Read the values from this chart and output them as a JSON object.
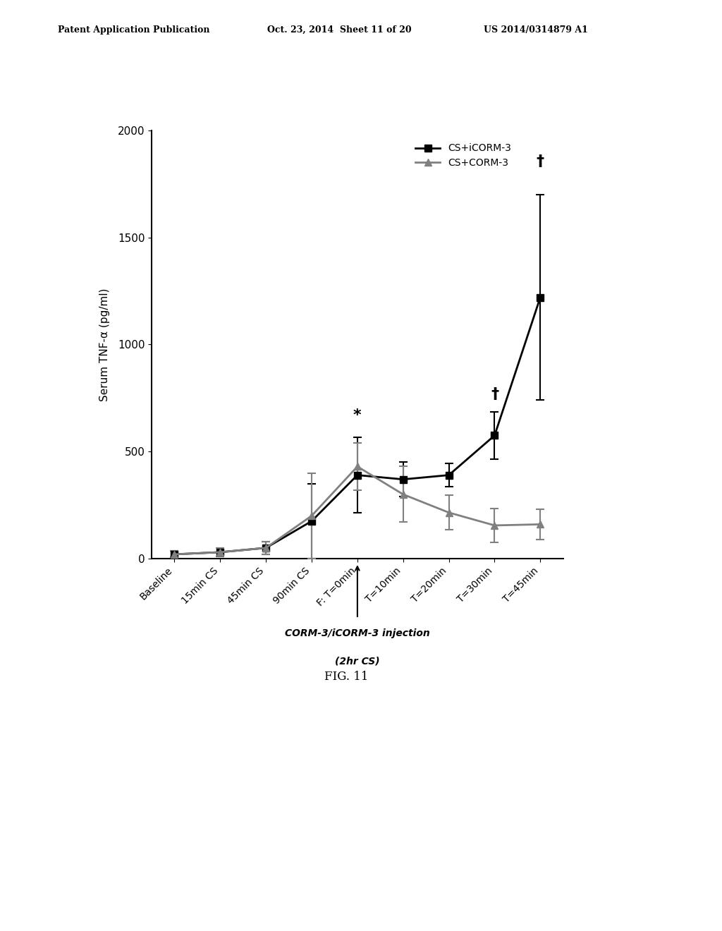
{
  "x_labels": [
    "Baseline",
    "15min CS",
    "45min CS",
    "90min CS",
    "F: T=0min",
    "T=10min",
    "T=20min",
    "T=30min",
    "T=45min"
  ],
  "icorm3_mean": [
    20,
    30,
    50,
    175,
    390,
    370,
    390,
    575,
    1220
  ],
  "icorm3_err": [
    15,
    20,
    30,
    175,
    175,
    80,
    55,
    110,
    480
  ],
  "corm3_mean": [
    20,
    30,
    50,
    200,
    430,
    300,
    215,
    155,
    160
  ],
  "corm3_err": [
    15,
    20,
    30,
    200,
    110,
    130,
    80,
    80,
    70
  ],
  "icorm3_color": "#000000",
  "corm3_color": "#808080",
  "ylabel": "Serum TNF-α (pg/ml)",
  "ylim": [
    0,
    2000
  ],
  "yticks": [
    0,
    500,
    1000,
    1500,
    2000
  ],
  "legend_labels": [
    "CS+iCORM-3",
    "CS+CORM-3"
  ],
  "annotation_text_line1": "CORM-3/iCORM-3 injection",
  "annotation_text_line2": "(2hr CS)",
  "header_left": "Patent Application Publication",
  "header_mid": "Oct. 23, 2014  Sheet 11 of 20",
  "header_right": "US 2014/0314879 A1",
  "fig_label": "FIG. 11",
  "background_color": "#ffffff"
}
